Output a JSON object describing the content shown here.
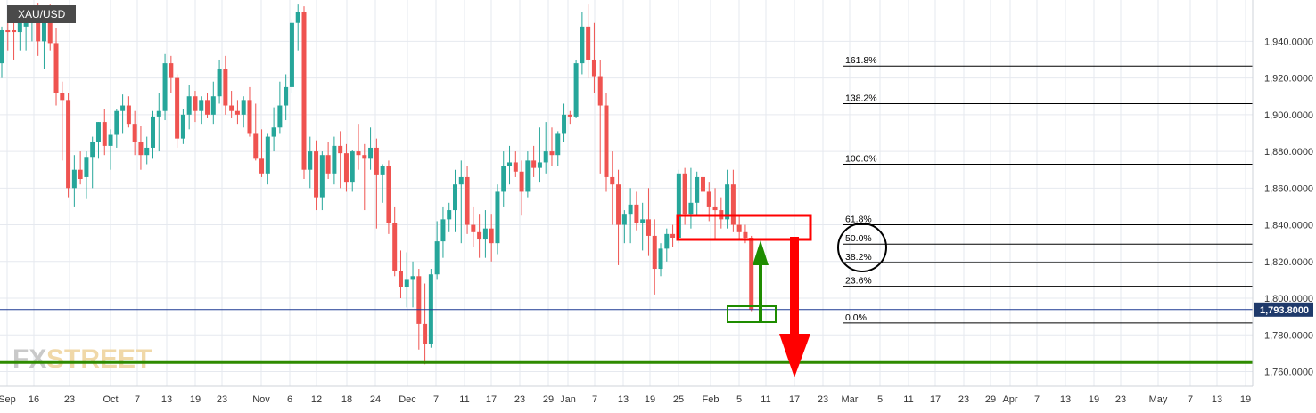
{
  "header": {
    "symbol": "XAU/USD"
  },
  "logo": {
    "text_fx": "FX",
    "text_street": "STREET"
  },
  "colors": {
    "bull": "#26a69a",
    "bear": "#ef5350",
    "price_line": "#1f3a93",
    "price_badge": "#1f3a6b",
    "support_line": "#2e8b00",
    "annotation_red": "#ff0000",
    "annotation_green": "#1e8c00",
    "grid": "#e6e9ef"
  },
  "chart_data": {
    "type": "candlestick",
    "title": "XAU/USD",
    "ylim": [
      1752,
      1962
    ],
    "y_ticks": [
      1760,
      1780,
      1800,
      1820,
      1840,
      1860,
      1880,
      1900,
      1920,
      1940
    ],
    "y_tick_labels": [
      "1,760.0000",
      "1,780.0000",
      "1,800.0000",
      "1,820.0000",
      "1,840.0000",
      "1,860.0000",
      "1,880.0000",
      "1,900.0000",
      "1,920.0000",
      "1,940.0000"
    ],
    "x_tick_labels": [
      "Sep",
      "16",
      "23",
      "Oct",
      "7",
      "13",
      "19",
      "23",
      "Nov",
      "6",
      "12",
      "18",
      "24",
      "Dec",
      "7",
      "11",
      "17",
      "23",
      "29",
      "Jan",
      "7",
      "13",
      "19",
      "25",
      "Feb",
      "5",
      "11",
      "17",
      "23",
      "Mar",
      "5",
      "11",
      "17",
      "23",
      "29",
      "Apr",
      "7",
      "13",
      "19",
      "23",
      "May",
      "7",
      "13",
      "19"
    ],
    "current_price": 1793.8,
    "current_price_label": "1,793.8000",
    "support_level": 1765,
    "fibonacci": {
      "levels": [
        {
          "label": "161.8%",
          "price": 1926.5
        },
        {
          "label": "138.2%",
          "price": 1906.0
        },
        {
          "label": "100.0%",
          "price": 1873.0
        },
        {
          "label": "61.8%",
          "price": 1840.0
        },
        {
          "label": "50.0%",
          "price": 1829.5
        },
        {
          "label": "38.2%",
          "price": 1819.5
        },
        {
          "label": "23.6%",
          "price": 1806.5
        },
        {
          "label": "0.0%",
          "price": 1786.5
        }
      ]
    },
    "candles": [
      [
        1928,
        1948,
        1920,
        1946
      ],
      [
        1946,
        1956,
        1935,
        1945
      ],
      [
        1946,
        1951,
        1930,
        1945
      ],
      [
        1945,
        1958,
        1935,
        1950
      ],
      [
        1948,
        1957,
        1935,
        1952
      ],
      [
        1952,
        1958,
        1940,
        1956
      ],
      [
        1956,
        1961,
        1932,
        1940
      ],
      [
        1940,
        1957,
        1925,
        1953
      ],
      [
        1952,
        1960,
        1935,
        1939
      ],
      [
        1939,
        1947,
        1905,
        1912
      ],
      [
        1912,
        1918,
        1875,
        1908
      ],
      [
        1908,
        1912,
        1855,
        1860
      ],
      [
        1860,
        1878,
        1850,
        1870
      ],
      [
        1870,
        1880,
        1862,
        1865
      ],
      [
        1866,
        1880,
        1854,
        1877
      ],
      [
        1877,
        1888,
        1860,
        1885
      ],
      [
        1885,
        1896,
        1876,
        1896
      ],
      [
        1896,
        1903,
        1878,
        1883
      ],
      [
        1883,
        1892,
        1870,
        1889
      ],
      [
        1889,
        1903,
        1882,
        1902
      ],
      [
        1902,
        1911,
        1890,
        1905
      ],
      [
        1905,
        1910,
        1893,
        1895
      ],
      [
        1895,
        1902,
        1878,
        1885
      ],
      [
        1885,
        1894,
        1870,
        1878
      ],
      [
        1878,
        1888,
        1873,
        1882
      ],
      [
        1882,
        1902,
        1876,
        1899
      ],
      [
        1899,
        1912,
        1880,
        1902
      ],
      [
        1902,
        1933,
        1897,
        1928
      ],
      [
        1928,
        1932,
        1912,
        1920
      ],
      [
        1920,
        1922,
        1882,
        1887
      ],
      [
        1887,
        1903,
        1884,
        1900
      ],
      [
        1900,
        1916,
        1892,
        1910
      ],
      [
        1910,
        1913,
        1896,
        1902
      ],
      [
        1902,
        1910,
        1895,
        1908
      ],
      [
        1908,
        1912,
        1898,
        1900
      ],
      [
        1900,
        1918,
        1895,
        1910
      ],
      [
        1910,
        1930,
        1906,
        1925
      ],
      [
        1925,
        1932,
        1900,
        1905
      ],
      [
        1905,
        1913,
        1898,
        1902
      ],
      [
        1902,
        1908,
        1895,
        1900
      ],
      [
        1900,
        1910,
        1893,
        1908
      ],
      [
        1908,
        1915,
        1888,
        1890
      ],
      [
        1890,
        1906,
        1875,
        1876
      ],
      [
        1876,
        1892,
        1866,
        1868
      ],
      [
        1868,
        1890,
        1862,
        1888
      ],
      [
        1888,
        1904,
        1880,
        1893
      ],
      [
        1893,
        1918,
        1890,
        1905
      ],
      [
        1905,
        1922,
        1897,
        1915
      ],
      [
        1915,
        1952,
        1912,
        1950
      ],
      [
        1950,
        1960,
        1935,
        1956
      ],
      [
        1956,
        1959,
        1865,
        1870
      ],
      [
        1870,
        1888,
        1860,
        1880
      ],
      [
        1880,
        1886,
        1848,
        1855
      ],
      [
        1855,
        1880,
        1848,
        1878
      ],
      [
        1878,
        1885,
        1865,
        1868
      ],
      [
        1868,
        1888,
        1862,
        1883
      ],
      [
        1883,
        1891,
        1860,
        1879
      ],
      [
        1879,
        1884,
        1858,
        1863
      ],
      [
        1863,
        1881,
        1858,
        1880
      ],
      [
        1880,
        1895,
        1870,
        1878
      ],
      [
        1878,
        1884,
        1848,
        1876
      ],
      [
        1876,
        1893,
        1870,
        1882
      ],
      [
        1882,
        1887,
        1838,
        1867
      ],
      [
        1867,
        1873,
        1852,
        1872
      ],
      [
        1872,
        1875,
        1835,
        1841
      ],
      [
        1841,
        1850,
        1812,
        1815
      ],
      [
        1815,
        1826,
        1800,
        1806
      ],
      [
        1806,
        1825,
        1795,
        1810
      ],
      [
        1810,
        1820,
        1795,
        1812
      ],
      [
        1812,
        1816,
        1772,
        1786
      ],
      [
        1786,
        1808,
        1764,
        1775
      ],
      [
        1775,
        1816,
        1773,
        1813
      ],
      [
        1813,
        1842,
        1810,
        1831
      ],
      [
        1831,
        1850,
        1822,
        1843
      ],
      [
        1843,
        1852,
        1836,
        1848
      ],
      [
        1848,
        1870,
        1836,
        1862
      ],
      [
        1862,
        1875,
        1830,
        1866
      ],
      [
        1866,
        1872,
        1835,
        1840
      ],
      [
        1840,
        1850,
        1828,
        1836
      ],
      [
        1836,
        1846,
        1822,
        1832
      ],
      [
        1832,
        1848,
        1822,
        1838
      ],
      [
        1838,
        1846,
        1820,
        1830
      ],
      [
        1830,
        1862,
        1824,
        1858
      ],
      [
        1858,
        1880,
        1850,
        1872
      ],
      [
        1872,
        1883,
        1862,
        1874
      ],
      [
        1874,
        1880,
        1866,
        1869
      ],
      [
        1869,
        1875,
        1845,
        1858
      ],
      [
        1858,
        1880,
        1855,
        1875
      ],
      [
        1875,
        1883,
        1866,
        1871
      ],
      [
        1871,
        1893,
        1863,
        1874
      ],
      [
        1874,
        1896,
        1868,
        1880
      ],
      [
        1880,
        1893,
        1872,
        1878
      ],
      [
        1878,
        1891,
        1872,
        1890
      ],
      [
        1890,
        1906,
        1885,
        1900
      ],
      [
        1900,
        1902,
        1895,
        1899
      ],
      [
        1899,
        1930,
        1898,
        1928
      ],
      [
        1928,
        1956,
        1922,
        1948
      ],
      [
        1948,
        1960,
        1920,
        1930
      ],
      [
        1930,
        1950,
        1912,
        1921
      ],
      [
        1921,
        1930,
        1868,
        1905
      ],
      [
        1905,
        1912,
        1858,
        1866
      ],
      [
        1866,
        1880,
        1840,
        1862
      ],
      [
        1862,
        1870,
        1818,
        1840
      ],
      [
        1840,
        1848,
        1830,
        1846
      ],
      [
        1846,
        1860,
        1830,
        1851
      ],
      [
        1851,
        1858,
        1837,
        1841
      ],
      [
        1841,
        1852,
        1826,
        1843
      ],
      [
        1843,
        1860,
        1823,
        1834
      ],
      [
        1834,
        1843,
        1802,
        1816
      ],
      [
        1816,
        1830,
        1812,
        1827
      ],
      [
        1827,
        1838,
        1820,
        1835
      ],
      [
        1835,
        1840,
        1828,
        1833
      ],
      [
        1833,
        1870,
        1830,
        1868
      ],
      [
        1868,
        1871,
        1840,
        1846
      ],
      [
        1846,
        1871,
        1838,
        1852
      ],
      [
        1852,
        1869,
        1845,
        1866
      ],
      [
        1866,
        1870,
        1845,
        1858
      ],
      [
        1858,
        1863,
        1842,
        1850
      ],
      [
        1850,
        1860,
        1832,
        1848
      ],
      [
        1848,
        1855,
        1838,
        1843
      ],
      [
        1843,
        1870,
        1838,
        1862
      ],
      [
        1862,
        1870,
        1836,
        1840
      ],
      [
        1840,
        1845,
        1832,
        1836
      ],
      [
        1836,
        1840,
        1830,
        1833
      ],
      [
        1833,
        1834,
        1793,
        1794
      ]
    ]
  }
}
